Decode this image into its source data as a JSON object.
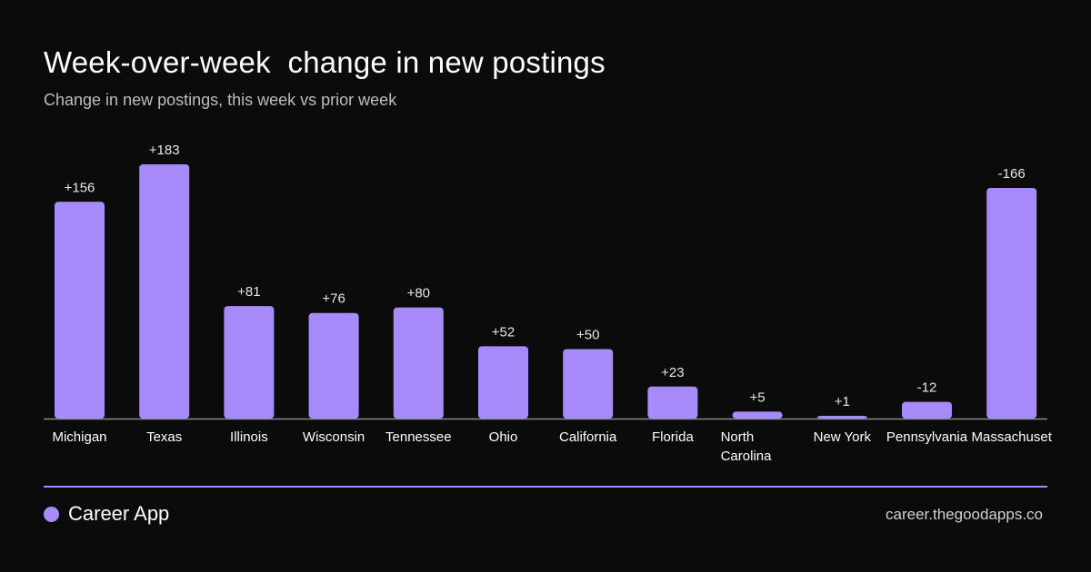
{
  "header": {
    "title": "Week-over-week  change in new postings",
    "subtitle": "Change in new postings, this week vs prior week"
  },
  "footer": {
    "brand": "Career App",
    "site": "career.thegoodapps.co"
  },
  "colors": {
    "accent": "#a78bfa",
    "background": "#0b0b0b"
  },
  "chart_data": {
    "type": "bar",
    "title": "Week-over-week  change in new postings",
    "subtitle": "Change in new postings, this week vs prior week",
    "categories": [
      "Michigan",
      "Texas",
      "Illinois",
      "Wisconsin",
      "Tennessee",
      "Ohio",
      "California",
      "Florida",
      "North Carolina",
      "New York",
      "Pennsylvania",
      "Massachuset"
    ],
    "values": [
      156,
      183,
      81,
      76,
      80,
      52,
      50,
      23,
      5,
      1,
      -12,
      -166
    ],
    "labels": [
      "+156",
      "+183",
      "+81",
      "+76",
      "+80",
      "+52",
      "+50",
      "+23",
      "+5",
      "+1",
      "-12",
      "-166"
    ],
    "bar_color": "#a78bfa",
    "grid": false,
    "legend": "none"
  }
}
